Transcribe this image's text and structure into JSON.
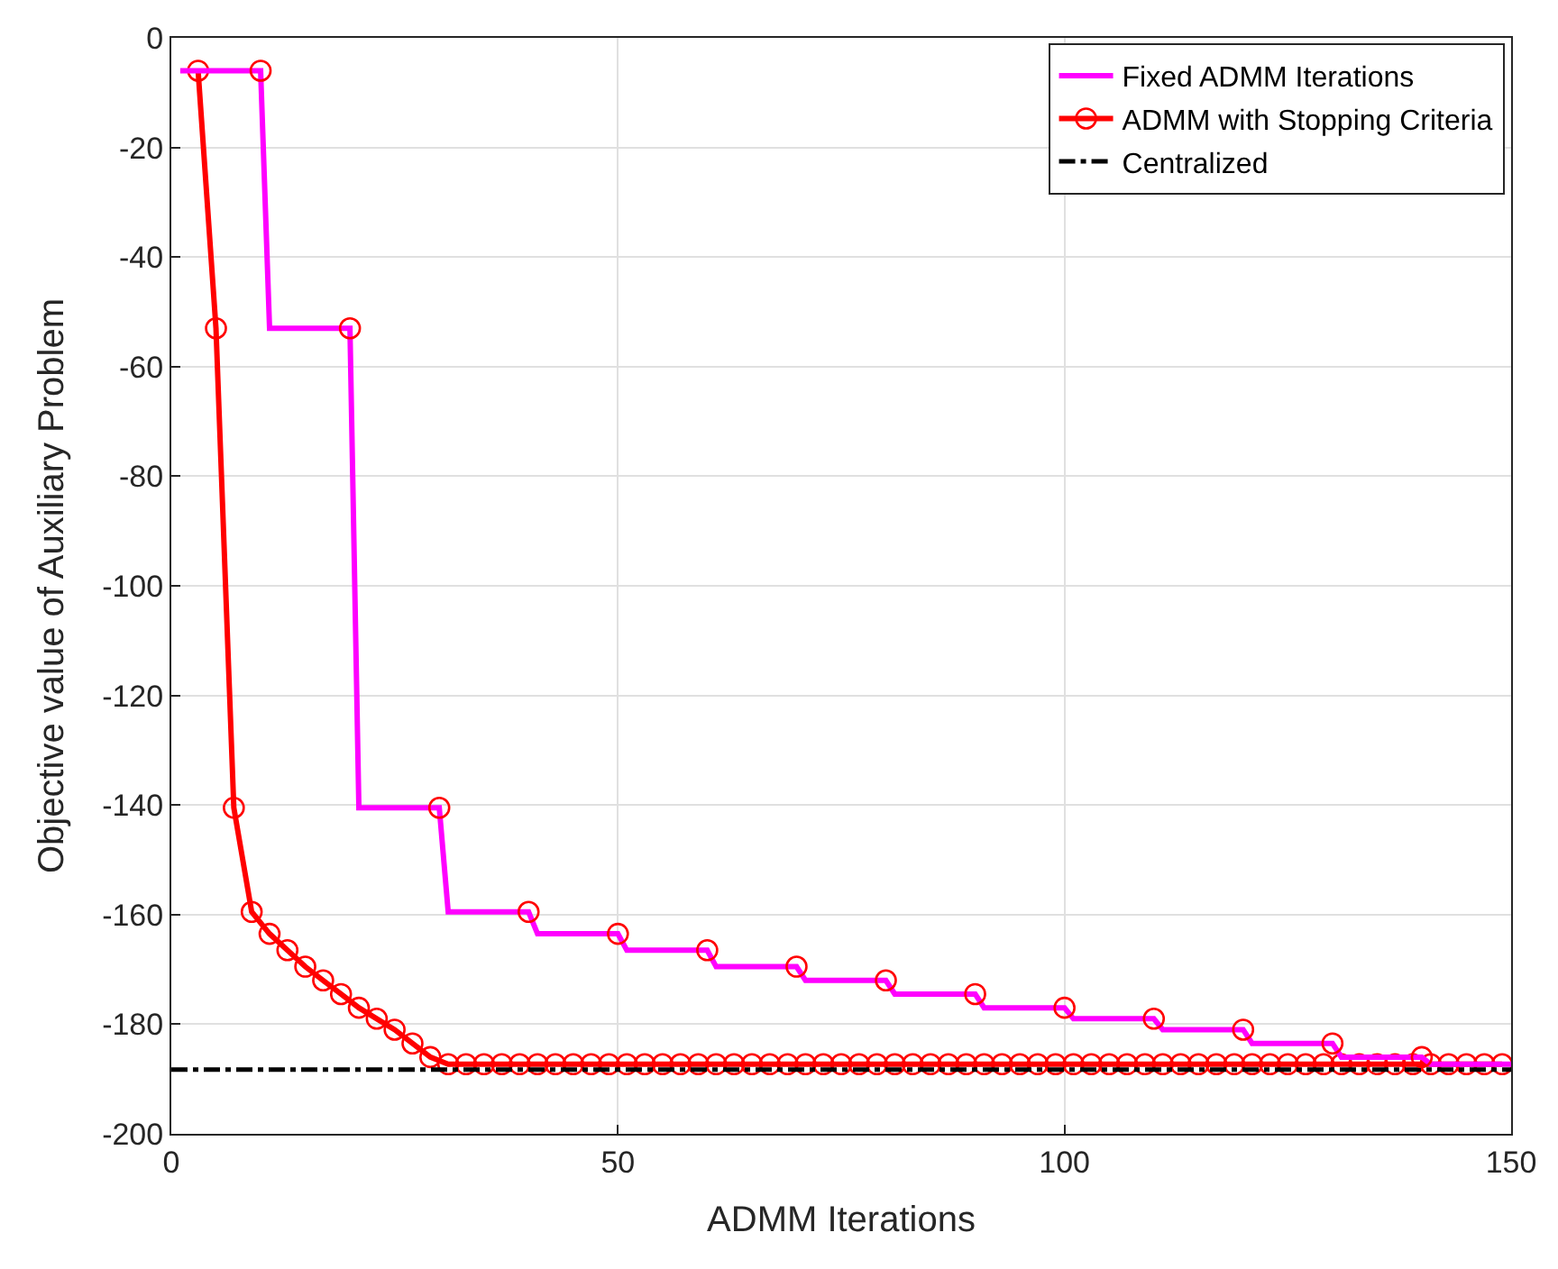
{
  "chart_data": {
    "type": "line",
    "xlabel": "ADMM Iterations",
    "ylabel": "Objective value of Auxiliary Problem",
    "xlim": [
      0,
      150
    ],
    "ylim": [
      -200,
      0
    ],
    "xticks": [
      0,
      50,
      100,
      150
    ],
    "yticks": [
      -200,
      -180,
      -160,
      -140,
      -120,
      -100,
      -80,
      -60,
      -40,
      -20,
      0
    ],
    "grid": true,
    "legend": "top right",
    "series": [
      {
        "name": "Fixed ADMM Iterations",
        "color": "#ff00ff",
        "marker": "none",
        "line_style": "solid",
        "x": [
          1,
          10,
          11,
          20,
          21,
          30,
          31,
          40,
          41,
          50,
          51,
          60,
          61,
          70,
          71,
          80,
          81,
          90,
          91,
          100,
          101,
          110,
          111,
          120,
          121,
          130,
          131,
          140,
          141,
          150
        ],
        "values": [
          -6,
          -6,
          -53,
          -53,
          -140.5,
          -140.5,
          -159.5,
          -159.5,
          -163.5,
          -163.5,
          -166.5,
          -166.5,
          -169.5,
          -169.5,
          -172,
          -172,
          -174.5,
          -174.5,
          -177,
          -177,
          -179,
          -179,
          -181,
          -181,
          -183.5,
          -183.5,
          -186,
          -186,
          -187.3,
          -187.3
        ]
      },
      {
        "name": "ADMM with Stopping Criteria",
        "color": "#ff0000",
        "marker": "circle",
        "line_style": "solid",
        "x": [
          3,
          5,
          7,
          9,
          11,
          13,
          15,
          17,
          19,
          21,
          23,
          25,
          27,
          29,
          31,
          33,
          35,
          37,
          39,
          41,
          43,
          45,
          47,
          49,
          51,
          53,
          55,
          57,
          59,
          61,
          63,
          65,
          67,
          69,
          71,
          73,
          75,
          77,
          79,
          81,
          83,
          85,
          87,
          89,
          91,
          93,
          95,
          97,
          99,
          101,
          103,
          105,
          107,
          109,
          111,
          113,
          115,
          117,
          119,
          121,
          123,
          125,
          127,
          129,
          131,
          133,
          135,
          137,
          139,
          141,
          143,
          145,
          147,
          149
        ],
        "values": [
          -6,
          -53,
          -140.5,
          -159.5,
          -163.5,
          -166.5,
          -169.5,
          -172,
          -174.5,
          -177,
          -179,
          -181,
          -183.5,
          -186,
          -187.3,
          -187.3,
          -187.3,
          -187.3,
          -187.3,
          -187.3,
          -187.3,
          -187.3,
          -187.3,
          -187.3,
          -187.3,
          -187.3,
          -187.3,
          -187.3,
          -187.3,
          -187.3,
          -187.3,
          -187.3,
          -187.3,
          -187.3,
          -187.3,
          -187.3,
          -187.3,
          -187.3,
          -187.3,
          -187.3,
          -187.3,
          -187.3,
          -187.3,
          -187.3,
          -187.3,
          -187.3,
          -187.3,
          -187.3,
          -187.3,
          -187.3,
          -187.3,
          -187.3,
          -187.3,
          -187.3,
          -187.3,
          -187.3,
          -187.3,
          -187.3,
          -187.3,
          -187.3,
          -187.3,
          -187.3,
          -187.3,
          -187.3,
          -187.3,
          -187.3,
          -187.3,
          -187.3,
          -187.3,
          -187.3,
          -187.3,
          -187.3,
          -187.3,
          -187.3
        ]
      },
      {
        "name": "Centralized",
        "color": "#000000",
        "marker": "none",
        "line_style": "dashdot",
        "x": [
          0,
          150
        ],
        "values": [
          -188.3,
          -188.3
        ]
      },
      {
        "type": "scatter",
        "color": "#ff0000",
        "marker": "circle",
        "x": [
          10,
          20,
          30,
          40,
          50,
          60,
          70,
          80,
          90,
          100,
          110,
          120,
          130,
          140
        ],
        "values": [
          -6,
          -53,
          -140.5,
          -159.5,
          -163.5,
          -166.5,
          -169.5,
          -172,
          -174.5,
          -177,
          -179,
          -181,
          -183.5,
          -186
        ]
      }
    ]
  }
}
